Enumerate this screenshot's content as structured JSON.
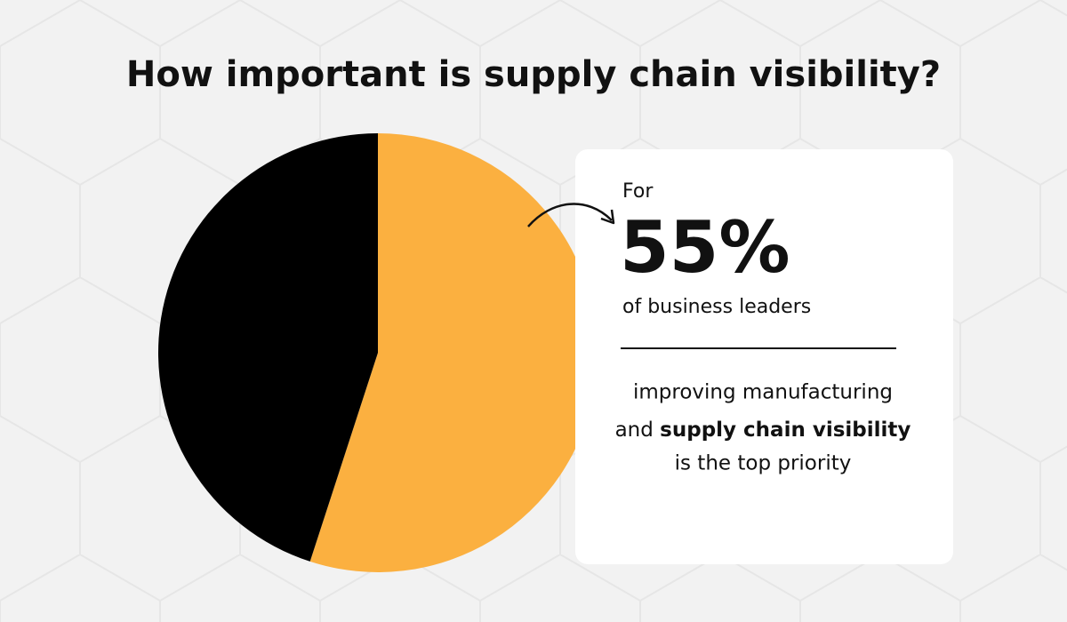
{
  "chart_data": {
    "type": "pie",
    "title": "How important is supply chain visibility?",
    "values": [
      55,
      45
    ],
    "value_labels": [
      "55%",
      null
    ],
    "colors": [
      "#fbb040",
      "#000000"
    ],
    "callout": {
      "before": "For",
      "after": "of business leaders",
      "note": {
        "line1": "improving manufacturing",
        "line2_plain": "and",
        "line2_bold": "supply chain visibility",
        "line3": "is the top priority"
      }
    }
  }
}
